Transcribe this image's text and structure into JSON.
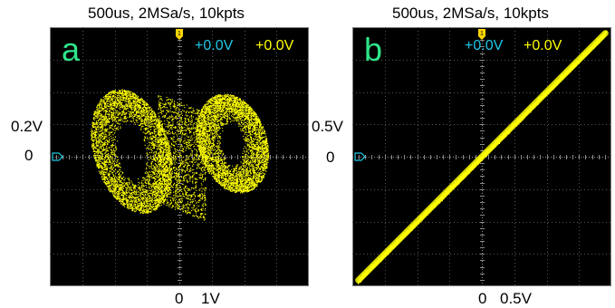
{
  "figure": {
    "panels": [
      {
        "id": "a",
        "title": "500us, 2MSa/s, 10kpts",
        "panel_label": "a",
        "ch1_offset": "+0.0V",
        "ch2_offset": "+0.0V",
        "y_tick_labels": [
          "0.2V",
          "0"
        ],
        "x_tick_labels": [
          "0",
          "1V"
        ],
        "trigger_marker": "1"
      },
      {
        "id": "b",
        "title": "500us, 2MSa/s, 10kpts",
        "panel_label": "b",
        "ch1_offset": "+0.0V",
        "ch2_offset": "+0.0V",
        "y_tick_labels": [
          "0.5V",
          "0"
        ],
        "x_tick_labels": [
          "0",
          "0.5V"
        ],
        "trigger_marker": "1"
      }
    ]
  },
  "chart_data": [
    {
      "type": "scatter",
      "title": "500us, 2MSa/s, 10kpts",
      "description_mode": "XY",
      "x_unit": "V",
      "y_unit": "V",
      "x_ticks": [
        {
          "value": 0,
          "label": "0"
        },
        {
          "value": 1,
          "label": "1V"
        }
      ],
      "y_ticks": [
        {
          "value": 0.2,
          "label": "0.2V"
        },
        {
          "value": 0,
          "label": "0"
        }
      ],
      "xlim": [
        -2.85,
        2.55
      ],
      "ylim": [
        -0.57,
        0.57
      ],
      "grid": true,
      "series": [
        {
          "color": "#ffff00",
          "shape": "double-scroll",
          "lobes": [
            {
              "center": [
                -1.15,
                0.025
              ],
              "outer_radius": [
                0.9,
                0.255
              ],
              "hole_radius": [
                0.3,
                0.12
              ]
            },
            {
              "center": [
                0.95,
                0.06
              ],
              "outer_radius": [
                0.78,
                0.21
              ],
              "hole_radius": [
                0.2,
                0.095
              ]
            }
          ],
          "x_extent": [
            -2.2,
            1.75
          ],
          "y_extent": [
            -0.33,
            0.3
          ]
        }
      ]
    },
    {
      "type": "scatter",
      "title": "500us, 2MSa/s, 10kpts",
      "description_mode": "XY",
      "x_unit": "V",
      "y_unit": "V",
      "x_ticks": [
        {
          "value": 0,
          "label": "0"
        },
        {
          "value": 0.5,
          "label": "0.5V"
        }
      ],
      "y_ticks": [
        {
          "value": 0.5,
          "label": "0.5V"
        },
        {
          "value": 0,
          "label": "0"
        }
      ],
      "xlim": [
        -1.28,
        1.28
      ],
      "ylim": [
        -1.28,
        1.28
      ],
      "grid": true,
      "series": [
        {
          "color": "#ffff00",
          "shape": "line-band",
          "slope": 1.0,
          "intercept": 0.0,
          "x_extent": [
            -1.22,
            1.22
          ],
          "band_halfwidth": 0.05
        }
      ]
    }
  ]
}
